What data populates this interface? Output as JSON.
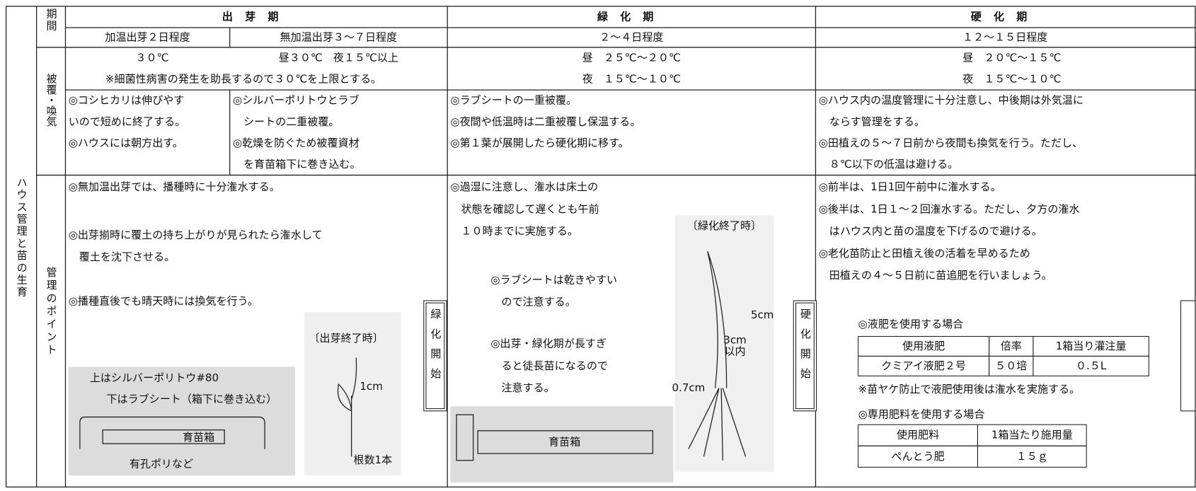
{
  "side_label": "ハウス管理と苗の生育",
  "row_labels": {
    "period": "期間",
    "covering": "被覆・喚気",
    "management": "管理のポイント"
  },
  "start_markers": [
    "緑化開始",
    "硬化開始"
  ],
  "stages": [
    {
      "name": "出芽期",
      "periods": [
        "加温出芽２日程度",
        "無加温出芽３～７日程度"
      ],
      "temperature": [
        "３０℃",
        "昼３０℃　夜１５℃以上",
        "※細菌性病害の発生を助長するので３０℃を上限とする。"
      ],
      "covering": [
        [
          "◎コシヒカリは伸びやす",
          "いので短めに終了する。",
          "◎ハウスには朝方出す。"
        ],
        [
          "◎シルバーポリトウとラブ",
          "　シートの二重被覆。",
          "◎乾燥を防ぐため被覆資材",
          "　を育苗箱下に巻き込む。"
        ]
      ],
      "management": [
        [
          "◎無加温出芽では、播種時に十分潅水する。"
        ],
        [
          "◎出芽揃時に覆土の持ち上がりが見られたら潅水して",
          "　覆土を沈下させる。"
        ],
        [
          "◎播種直後でも晴天時には換気を行う。"
        ]
      ],
      "figure": [
        "上はシルバーポリトウ#80",
        "下はラブシート（箱下に巻き込む）",
        "育苗箱",
        "有孔ポリなど",
        "〔出芽終了時〕",
        "1cm",
        "根数1本"
      ]
    },
    {
      "name": "緑化期",
      "periods": [
        "２～４日程度"
      ],
      "temperature": [
        "昼　２５℃～２０℃",
        "夜　１５℃～１０℃"
      ],
      "covering": [
        [
          "◎ラブシートの一重被覆。",
          "◎夜間や低温時は二重被覆し保温する。",
          "◎第１葉が展開したら硬化期に移す。"
        ]
      ],
      "management": [
        [
          "◎過湿に注意し、潅水は床土の",
          "　状態を確認して遅くとも午前",
          "　１０時までに実施する。"
        ],
        [
          "◎ラブシートは乾きやすい",
          "　ので注意する。"
        ],
        [
          "◎出芽・緑化期が長すぎ",
          "　ると徒長苗になるので",
          "　注意する。"
        ]
      ],
      "figure": [
        "育苗箱",
        "〔緑化終了時〕",
        "5cm",
        "3cm",
        "以内",
        "0.7cm"
      ]
    },
    {
      "name": "硬化期",
      "periods": [
        "１２～１５日程度"
      ],
      "temperature": [
        "昼　２０℃～１５℃",
        "夜　１５℃～１０℃"
      ],
      "covering": [
        [
          "◎ハウス内の温度管理に十分注意し、中後期は外気温に",
          "　ならす管理をする。",
          "◎田植えの５～７日前から夜間も換気を行う。ただし、",
          "　８℃以下の低温は避ける。"
        ]
      ],
      "management": [
        [
          "◎前半は、1日1回午前中に潅水する。",
          "◎後半は、1日１～２回潅水する。ただし、夕方の潅水",
          "　はハウス内と苗の温度を下げるので避ける。",
          "◎老化苗防止と田植え後の活着を早めるため",
          "　田植えの４～５日前に苗追肥を行いましょう。"
        ]
      ],
      "liquid": {
        "heading": "◎液肥を使用する場合",
        "header": [
          "使用液肥",
          "倍率",
          "1箱当り灌注量"
        ],
        "row": [
          "クミアイ液肥２号",
          "５０培",
          "０.５L"
        ],
        "note": "※苗ヤケ防止で液肥使用後は潅水を実施する。"
      },
      "special": {
        "heading": "◎専用肥料を使用する場合",
        "header": [
          "使用肥料",
          "1箱当たり施用量"
        ],
        "row": [
          "ぺんとう肥",
          "１５ｇ"
        ]
      }
    }
  ]
}
